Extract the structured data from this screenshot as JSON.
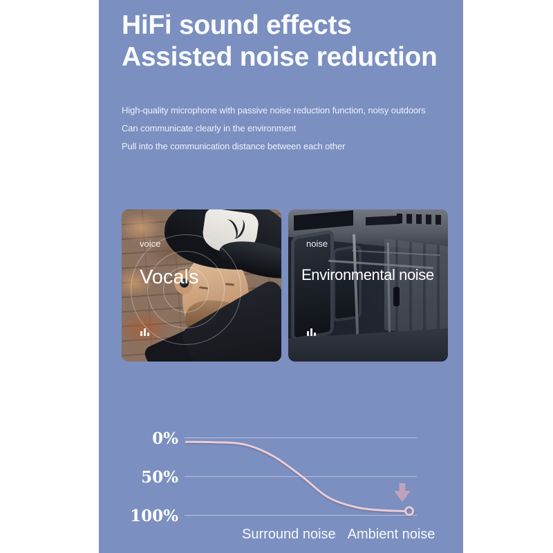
{
  "colors": {
    "panel": "#7b8fc0",
    "heading_text": "#f9fbfe",
    "body_text": "#eef2f9",
    "curve": "#e9cdd8",
    "gridline": "rgba(248,244,250,0.5)",
    "arrow": "#d9abbd",
    "chart_label": "#ffffff"
  },
  "heading": {
    "line1": "HiFi sound effects",
    "line2": "Assisted noise reduction"
  },
  "description": {
    "lines": [
      "High-quality microphone with passive noise reduction function, noisy outdoors",
      "Can communicate clearly in the environment",
      "Pull into the communication distance between each other"
    ]
  },
  "cards": [
    {
      "tag": "voice",
      "title": "Vocals",
      "icon": "equalizer-bars-icon",
      "photo": "man wearing trucker cap and earbud against brick wall"
    },
    {
      "tag": "noise",
      "title": "Environmental noise",
      "icon": "equalizer-bars-icon",
      "photo": "darkened subway train interior"
    }
  ],
  "chart_data": {
    "type": "line",
    "title": "",
    "y_tick_labels": [
      "0%",
      "50%",
      "100%"
    ],
    "x_axis_labels": [
      "Surround noise",
      "Ambient noise"
    ],
    "y_axis": "noise level (percent, 0 at top — curve descends toward 100%)",
    "grid": true,
    "series": [
      {
        "name": "noise-reduction-curve",
        "x": [
          0,
          0.13,
          0.27,
          0.4,
          0.53,
          0.65,
          0.78,
          0.9,
          1.0
        ],
        "y": [
          5.5,
          6,
          9,
          24,
          50,
          77,
          90,
          94,
          95
        ]
      }
    ],
    "end_marker": "open-circle",
    "annotation": "downward arrow above curve end"
  }
}
